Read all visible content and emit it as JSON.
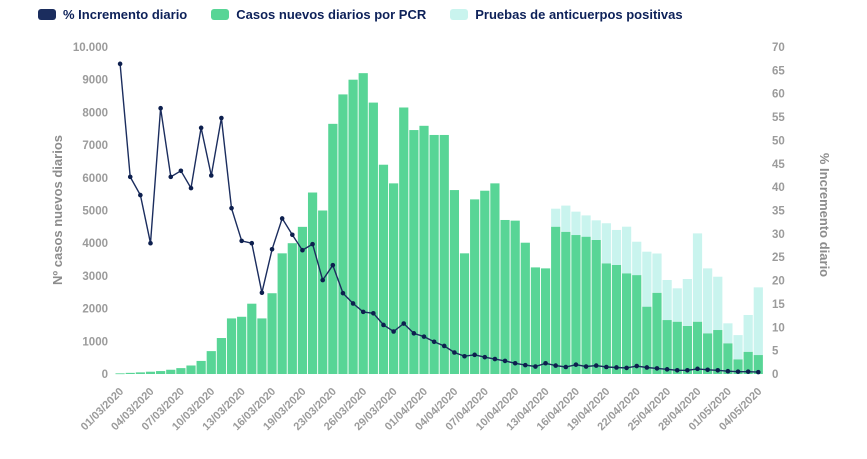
{
  "chart_data": {
    "type": "bar",
    "title": "",
    "legend": [
      "% Incremento diario",
      "Casos nuevos diarios por PCR",
      "Pruebas de anticuerpos positivas"
    ],
    "ylabel_left": "Nº casos nuevos diarios",
    "ylabel_right": "% Incremento diario",
    "ylim_left": [
      0,
      10000
    ],
    "ylim_right": [
      0,
      70
    ],
    "left_tick_labels": [
      "0",
      "1000",
      "2000",
      "3000",
      "4000",
      "5000",
      "6000",
      "7000",
      "8000",
      "9000",
      "10.000"
    ],
    "left_tick_values": [
      0,
      1000,
      2000,
      3000,
      4000,
      5000,
      6000,
      7000,
      8000,
      9000,
      10000
    ],
    "right_tick_values": [
      0,
      5,
      10,
      15,
      20,
      25,
      30,
      35,
      40,
      45,
      50,
      55,
      60,
      65,
      70
    ],
    "x_tick_every": 3,
    "grid": false,
    "legend_position": "top",
    "categories": [
      "01/03/2020",
      "02/03/2020",
      "03/03/2020",
      "04/03/2020",
      "05/03/2020",
      "06/03/2020",
      "07/03/2020",
      "08/03/2020",
      "09/03/2020",
      "10/03/2020",
      "11/03/2020",
      "12/03/2020",
      "13/03/2020",
      "14/03/2020",
      "15/03/2020",
      "16/03/2020",
      "17/03/2020",
      "18/03/2020",
      "19/03/2020",
      "20/03/2020",
      "22/03/2020",
      "23/03/2020",
      "24/03/2020",
      "25/03/2020",
      "26/03/2020",
      "27/03/2020",
      "28/03/2020",
      "29/03/2020",
      "30/03/2020",
      "31/03/2020",
      "01/04/2020",
      "02/04/2020",
      "03/04/2020",
      "04/04/2020",
      "05/04/2020",
      "06/04/2020",
      "07/04/2020",
      "08/04/2020",
      "09/04/2020",
      "10/04/2020",
      "11/04/2020",
      "12/04/2020",
      "13/04/2020",
      "14/04/2020",
      "15/04/2020",
      "16/04/2020",
      "17/04/2020",
      "18/04/2020",
      "19/04/2020",
      "20/04/2020",
      "21/04/2020",
      "22/04/2020",
      "23/04/2020",
      "24/04/2020",
      "25/04/2020",
      "26/04/2020",
      "27/04/2020",
      "28/04/2020",
      "29/04/2020",
      "30/04/2020",
      "01/05/2020",
      "02/05/2020",
      "03/05/2020",
      "04/05/2020"
    ],
    "series": [
      {
        "name": "Casos nuevos diarios por PCR",
        "type": "bar",
        "stack": "cases",
        "axis": "left",
        "values": [
          20,
          35,
          50,
          70,
          90,
          130,
          180,
          260,
          400,
          700,
          1100,
          1700,
          1750,
          2150,
          1700,
          2470,
          3690,
          4000,
          4500,
          5550,
          5000,
          7650,
          8550,
          9000,
          9200,
          8300,
          6400,
          5830,
          8150,
          7460,
          7590,
          7310,
          7310,
          5625,
          3690,
          5340,
          5605,
          5830,
          4710,
          4690,
          4015,
          3260,
          3230,
          4505,
          4350,
          4250,
          4200,
          4100,
          3385,
          3335,
          3080,
          3025,
          2060,
          2485,
          1650,
          1600,
          1470,
          1600,
          1245,
          1345,
          940,
          450,
          680,
          580
        ]
      },
      {
        "name": "Pruebas de anticuerpos positivas",
        "type": "bar",
        "stack": "cases",
        "axis": "left",
        "values": [
          0,
          0,
          0,
          0,
          0,
          0,
          0,
          0,
          0,
          0,
          0,
          0,
          0,
          0,
          0,
          0,
          0,
          0,
          0,
          0,
          0,
          0,
          0,
          0,
          0,
          0,
          0,
          0,
          0,
          0,
          0,
          0,
          0,
          0,
          0,
          0,
          0,
          0,
          0,
          0,
          0,
          0,
          0,
          550,
          800,
          715,
          650,
          600,
          1225,
          1070,
          1425,
          1020,
          1680,
          1200,
          1225,
          1020,
          1435,
          2700,
          1985,
          1630,
          610,
          740,
          1125,
          2070
        ]
      },
      {
        "name": "% Incremento diario",
        "type": "line",
        "axis": "right",
        "values": [
          66.4,
          42.2,
          38.3,
          28,
          56.9,
          42.2,
          43.5,
          39.8,
          52.7,
          42.5,
          54.8,
          35.5,
          28.5,
          28,
          17.4,
          26.7,
          33.3,
          29.8,
          26.5,
          27.8,
          20.1,
          23.3,
          17.3,
          15.1,
          13.3,
          13,
          10.5,
          9.1,
          10.8,
          8.7,
          8,
          6.9,
          6,
          4.6,
          3.8,
          4.1,
          3.6,
          3.2,
          2.8,
          2.3,
          1.9,
          1.6,
          2.3,
          1.8,
          1.5,
          2,
          1.6,
          1.8,
          1.5,
          1.4,
          1.3,
          1.7,
          1.4,
          1.2,
          1,
          0.8,
          0.8,
          1.1,
          0.9,
          0.8,
          0.6,
          0.5,
          0.5,
          0.4
        ]
      }
    ],
    "colors": {
      "line": "#1b2d5e",
      "dot": "#0d1f4e",
      "bar_pcr": "#58d596",
      "bar_antibody": "#c9f4ee",
      "tick_text": "#9b9b9b",
      "axis_title": "#8c8c8c",
      "legend_text": "#0d2159"
    }
  }
}
